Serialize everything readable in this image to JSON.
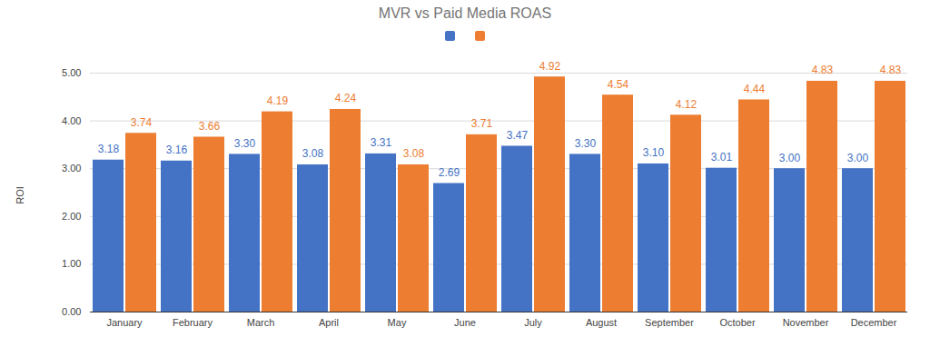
{
  "chart_data": {
    "type": "bar",
    "title": "MVR vs Paid Media ROAS",
    "y_label": "ROI",
    "categories": [
      "January",
      "February",
      "March",
      "April",
      "May",
      "June",
      "July",
      "August",
      "September",
      "October",
      "November",
      "December"
    ],
    "series": [
      {
        "color": "#4472c4",
        "values": [
          3.18,
          3.16,
          3.3,
          3.08,
          3.31,
          2.69,
          3.47,
          3.3,
          3.1,
          3.01,
          3.0,
          3.0
        ],
        "value_labels": [
          "3.18",
          "3.16",
          "3.30",
          "3.08",
          "3.31",
          "2.69",
          "3.47",
          "3.30",
          "3.10",
          "3.01",
          "3.00",
          "3.00"
        ]
      },
      {
        "color": "#ed7d31",
        "values": [
          3.74,
          3.66,
          4.19,
          4.24,
          3.08,
          3.71,
          4.92,
          4.54,
          4.12,
          4.44,
          4.83,
          4.83
        ],
        "value_labels": [
          "3.74",
          "3.66",
          "4.19",
          "4.24",
          "3.08",
          "3.71",
          "4.92",
          "4.54",
          "4.12",
          "4.44",
          "4.83",
          "4.83"
        ]
      }
    ],
    "ylim": [
      0,
      5
    ],
    "yticks": [
      {
        "value": 0,
        "label": "0.00"
      },
      {
        "value": 1,
        "label": "1.00"
      },
      {
        "value": 2,
        "label": "2.00"
      },
      {
        "value": 3,
        "label": "3.00"
      },
      {
        "value": 4,
        "label": "4.00"
      },
      {
        "value": 5,
        "label": "5.00"
      }
    ],
    "grid": true,
    "legend": "top",
    "data_labels": true
  }
}
